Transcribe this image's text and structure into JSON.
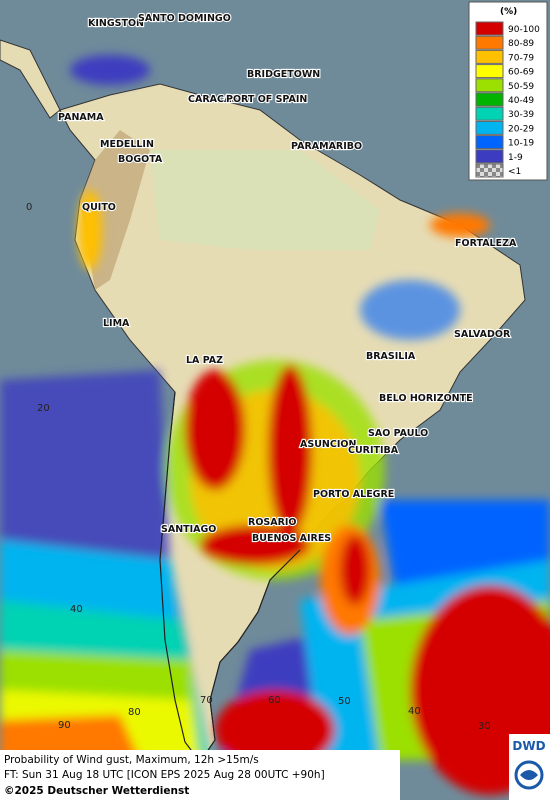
{
  "legend": {
    "title": "(%)",
    "items": [
      {
        "label": "90-100",
        "color": "#d40000"
      },
      {
        "label": "80-89",
        "color": "#ff7800"
      },
      {
        "label": "70-79",
        "color": "#ffc000"
      },
      {
        "label": "60-69",
        "color": "#ffff00"
      },
      {
        "label": "50-59",
        "color": "#9be000"
      },
      {
        "label": "40-49",
        "color": "#00b400"
      },
      {
        "label": "30-39",
        "color": "#00d2b4"
      },
      {
        "label": "20-29",
        "color": "#00b4f0"
      },
      {
        "label": "10-19",
        "color": "#0064ff"
      },
      {
        "label": "1-9",
        "color": "#3c3cc0"
      },
      {
        "label": "<1",
        "color": "checker"
      }
    ]
  },
  "cities": [
    "KINGSTON",
    "SANTO DOMINGO",
    "BRIDGETOWN",
    "CARACAS",
    "PORT OF SPAIN",
    "PANAMA",
    "MEDELLIN",
    "BOGOTA",
    "PARAMARIBO",
    "QUITO",
    "FORTALEZA",
    "LIMA",
    "SALVADOR",
    "LA PAZ",
    "BRASILIA",
    "BELO HORIZONTE",
    "SAO PAULO",
    "ASUNCION",
    "CURITIBA",
    "PORTO ALEGRE",
    "SANTIAGO",
    "ROSARIO",
    "BUENOS AIRES"
  ],
  "grid_labels": [
    "0",
    "20",
    "40",
    "90",
    "80",
    "70",
    "60",
    "50",
    "40",
    "30"
  ],
  "footer": {
    "line1": "Probability of Wind gust, Maximum, 12h >15m/s",
    "line2": "FT: Sun 31 Aug 18 UTC [ICON EPS 2025 Aug 28 00UTC +90h]",
    "copyright": "©2025 Deutscher Wetterdienst"
  },
  "logo": "DWD"
}
